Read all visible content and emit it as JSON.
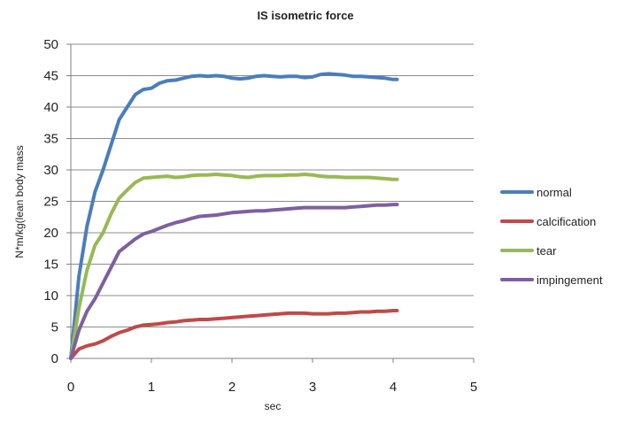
{
  "chart_data": {
    "type": "line",
    "title": "IS isometric force",
    "xlabel": "sec",
    "ylabel": "N*m/kg(lean body mass",
    "xlim": [
      0,
      5
    ],
    "ylim": [
      0,
      50
    ],
    "x_ticks": [
      "0",
      "1",
      "2",
      "3",
      "4",
      "5"
    ],
    "y_ticks": [
      "0",
      "5",
      "10",
      "15",
      "20",
      "25",
      "30",
      "35",
      "40",
      "45",
      "50"
    ],
    "grid": "horizontal",
    "legend_position": "right",
    "series": [
      {
        "name": "normal",
        "color": "#4a7ebb",
        "points": [
          [
            0,
            0
          ],
          [
            0.1,
            13
          ],
          [
            0.2,
            21
          ],
          [
            0.3,
            26.5
          ],
          [
            0.4,
            30
          ],
          [
            0.5,
            34
          ],
          [
            0.6,
            38
          ],
          [
            0.7,
            40
          ],
          [
            0.8,
            42
          ],
          [
            0.9,
            42.8
          ],
          [
            1.0,
            43
          ],
          [
            1.1,
            43.8
          ],
          [
            1.2,
            44.2
          ],
          [
            1.3,
            44.3
          ],
          [
            1.4,
            44.6
          ],
          [
            1.5,
            44.9
          ],
          [
            1.6,
            45
          ],
          [
            1.7,
            44.9
          ],
          [
            1.8,
            45
          ],
          [
            1.9,
            44.9
          ],
          [
            2.0,
            44.6
          ],
          [
            2.1,
            44.5
          ],
          [
            2.2,
            44.6
          ],
          [
            2.3,
            44.9
          ],
          [
            2.4,
            45
          ],
          [
            2.5,
            44.9
          ],
          [
            2.6,
            44.8
          ],
          [
            2.7,
            44.9
          ],
          [
            2.8,
            44.9
          ],
          [
            2.9,
            44.7
          ],
          [
            3.0,
            44.8
          ],
          [
            3.1,
            45.2
          ],
          [
            3.2,
            45.3
          ],
          [
            3.3,
            45.2
          ],
          [
            3.4,
            45.1
          ],
          [
            3.5,
            44.9
          ],
          [
            3.6,
            44.9
          ],
          [
            3.7,
            44.8
          ],
          [
            3.8,
            44.7
          ],
          [
            3.9,
            44.6
          ],
          [
            4.0,
            44.4
          ],
          [
            4.05,
            44.4
          ]
        ]
      },
      {
        "name": "calcification",
        "color": "#be4b48",
        "points": [
          [
            0,
            0
          ],
          [
            0.1,
            1.5
          ],
          [
            0.2,
            2
          ],
          [
            0.3,
            2.3
          ],
          [
            0.4,
            2.8
          ],
          [
            0.5,
            3.5
          ],
          [
            0.6,
            4.1
          ],
          [
            0.7,
            4.5
          ],
          [
            0.8,
            5
          ],
          [
            0.9,
            5.3
          ],
          [
            1.0,
            5.4
          ],
          [
            1.1,
            5.5
          ],
          [
            1.2,
            5.7
          ],
          [
            1.3,
            5.8
          ],
          [
            1.4,
            6
          ],
          [
            1.5,
            6.1
          ],
          [
            1.6,
            6.2
          ],
          [
            1.7,
            6.2
          ],
          [
            1.8,
            6.3
          ],
          [
            1.9,
            6.4
          ],
          [
            2.0,
            6.5
          ],
          [
            2.1,
            6.6
          ],
          [
            2.2,
            6.7
          ],
          [
            2.3,
            6.8
          ],
          [
            2.4,
            6.9
          ],
          [
            2.5,
            7
          ],
          [
            2.6,
            7.1
          ],
          [
            2.7,
            7.2
          ],
          [
            2.8,
            7.2
          ],
          [
            2.9,
            7.2
          ],
          [
            3.0,
            7.1
          ],
          [
            3.1,
            7.1
          ],
          [
            3.2,
            7.1
          ],
          [
            3.3,
            7.2
          ],
          [
            3.4,
            7.2
          ],
          [
            3.5,
            7.3
          ],
          [
            3.6,
            7.4
          ],
          [
            3.7,
            7.4
          ],
          [
            3.8,
            7.5
          ],
          [
            3.9,
            7.5
          ],
          [
            4.0,
            7.6
          ],
          [
            4.05,
            7.6
          ]
        ]
      },
      {
        "name": "tear",
        "color": "#98b954",
        "points": [
          [
            0,
            0
          ],
          [
            0.1,
            8
          ],
          [
            0.2,
            14
          ],
          [
            0.3,
            18
          ],
          [
            0.4,
            20
          ],
          [
            0.5,
            23
          ],
          [
            0.6,
            25.5
          ],
          [
            0.7,
            26.8
          ],
          [
            0.8,
            28
          ],
          [
            0.9,
            28.7
          ],
          [
            1.0,
            28.8
          ],
          [
            1.1,
            28.9
          ],
          [
            1.2,
            29
          ],
          [
            1.3,
            28.8
          ],
          [
            1.4,
            28.9
          ],
          [
            1.5,
            29.1
          ],
          [
            1.6,
            29.2
          ],
          [
            1.7,
            29.2
          ],
          [
            1.8,
            29.3
          ],
          [
            1.9,
            29.2
          ],
          [
            2.0,
            29.1
          ],
          [
            2.1,
            28.9
          ],
          [
            2.2,
            28.8
          ],
          [
            2.3,
            29
          ],
          [
            2.4,
            29.1
          ],
          [
            2.5,
            29.1
          ],
          [
            2.6,
            29.1
          ],
          [
            2.7,
            29.2
          ],
          [
            2.8,
            29.2
          ],
          [
            2.9,
            29.3
          ],
          [
            3.0,
            29.2
          ],
          [
            3.1,
            29
          ],
          [
            3.2,
            28.9
          ],
          [
            3.3,
            28.9
          ],
          [
            3.4,
            28.8
          ],
          [
            3.5,
            28.8
          ],
          [
            3.6,
            28.8
          ],
          [
            3.7,
            28.8
          ],
          [
            3.8,
            28.7
          ],
          [
            3.9,
            28.6
          ],
          [
            4.0,
            28.5
          ],
          [
            4.05,
            28.5
          ]
        ]
      },
      {
        "name": "impingement",
        "color": "#7d60a0",
        "points": [
          [
            0,
            0
          ],
          [
            0.1,
            4.5
          ],
          [
            0.2,
            7.5
          ],
          [
            0.3,
            9.5
          ],
          [
            0.4,
            12
          ],
          [
            0.5,
            14.5
          ],
          [
            0.6,
            17
          ],
          [
            0.7,
            18
          ],
          [
            0.8,
            19
          ],
          [
            0.9,
            19.8
          ],
          [
            1.0,
            20.2
          ],
          [
            1.1,
            20.7
          ],
          [
            1.2,
            21.2
          ],
          [
            1.3,
            21.6
          ],
          [
            1.4,
            21.9
          ],
          [
            1.5,
            22.3
          ],
          [
            1.6,
            22.6
          ],
          [
            1.7,
            22.7
          ],
          [
            1.8,
            22.8
          ],
          [
            1.9,
            23
          ],
          [
            2.0,
            23.2
          ],
          [
            2.1,
            23.3
          ],
          [
            2.2,
            23.4
          ],
          [
            2.3,
            23.5
          ],
          [
            2.4,
            23.5
          ],
          [
            2.5,
            23.6
          ],
          [
            2.6,
            23.7
          ],
          [
            2.7,
            23.8
          ],
          [
            2.8,
            23.9
          ],
          [
            2.9,
            24
          ],
          [
            3.0,
            24
          ],
          [
            3.1,
            24
          ],
          [
            3.2,
            24
          ],
          [
            3.3,
            24
          ],
          [
            3.4,
            24
          ],
          [
            3.5,
            24.1
          ],
          [
            3.6,
            24.2
          ],
          [
            3.7,
            24.3
          ],
          [
            3.8,
            24.4
          ],
          [
            3.9,
            24.4
          ],
          [
            4.0,
            24.5
          ],
          [
            4.05,
            24.5
          ]
        ]
      }
    ]
  }
}
